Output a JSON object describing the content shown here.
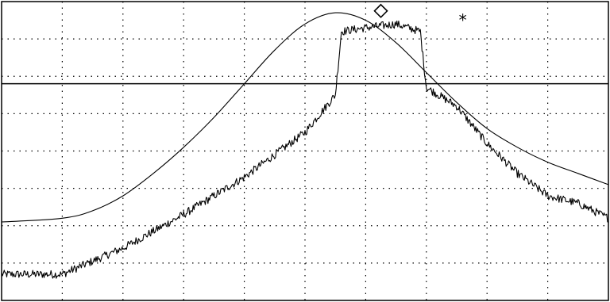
{
  "chart_data": {
    "type": "line",
    "xlim": [
      0,
      10
    ],
    "ylim": [
      0,
      8
    ],
    "grid": true,
    "grid_style": "dotted",
    "x_divisions": 10,
    "y_divisions": 8,
    "reference_line_y": 5.8,
    "series": [
      {
        "style": "smooth",
        "x": [
          0,
          1,
          1.5,
          2,
          2.5,
          3,
          3.5,
          4,
          4.5,
          5,
          5.5,
          6,
          6.5,
          7,
          7.5,
          8,
          8.5,
          9,
          9.5,
          10
        ],
        "y": [
          2.1,
          2.2,
          2.4,
          2.8,
          3.4,
          4.1,
          4.9,
          5.8,
          6.7,
          7.4,
          7.7,
          7.5,
          6.9,
          6.1,
          5.3,
          4.6,
          4.1,
          3.7,
          3.4,
          3.1
        ]
      },
      {
        "style": "noisy",
        "x": [
          0,
          1,
          2,
          3,
          4,
          5,
          5.5,
          5.6,
          6,
          6.5,
          6.9,
          7.0,
          7.5,
          8,
          8.5,
          9,
          9.5,
          10
        ],
        "y": [
          0.7,
          0.7,
          1.4,
          2.3,
          3.3,
          4.5,
          5.5,
          7.2,
          7.3,
          7.4,
          7.2,
          5.7,
          5.2,
          4.2,
          3.4,
          2.8,
          2.6,
          2.2
        ]
      }
    ],
    "markers": [
      {
        "symbol": "◇",
        "x": 6.25,
        "y": 7.75
      },
      {
        "symbol": "*",
        "x": 7.6,
        "y": 7.5
      }
    ]
  }
}
